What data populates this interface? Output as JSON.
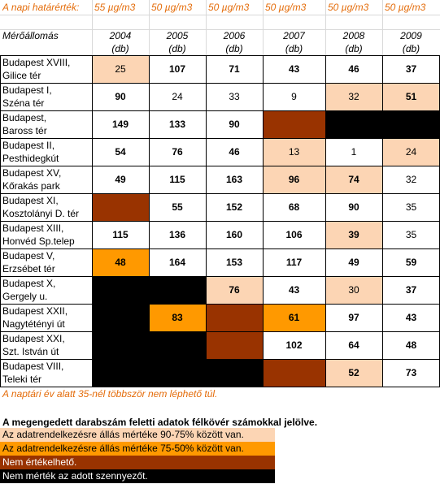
{
  "header": {
    "limit_label": "A napi határérték:",
    "limits": [
      "55 µg/m3",
      "50 µg/m3",
      "50 µg/m3",
      "50 µg/m3",
      "50 µg/m3",
      "50 µg/m3"
    ],
    "station_label": "Mérőállomás",
    "years": [
      "2004",
      "2005",
      "2006",
      "2007",
      "2008",
      "2009"
    ],
    "unit": "(db)"
  },
  "colors": {
    "light_orange": "#fcd5b4",
    "orange": "#ff9900",
    "brown": "#993300",
    "black": "#000000",
    "note_orange": "#e46c0a"
  },
  "rows": [
    {
      "station": [
        "Budapest XVIII,",
        "Gilice tér"
      ],
      "cells": [
        {
          "v": "25",
          "b": false,
          "c": "light"
        },
        {
          "v": "107",
          "b": true,
          "c": ""
        },
        {
          "v": "71",
          "b": true,
          "c": ""
        },
        {
          "v": "43",
          "b": true,
          "c": ""
        },
        {
          "v": "46",
          "b": true,
          "c": ""
        },
        {
          "v": "37",
          "b": true,
          "c": ""
        }
      ]
    },
    {
      "station": [
        "Budapest I,",
        "Széna tér"
      ],
      "cells": [
        {
          "v": "90",
          "b": true,
          "c": ""
        },
        {
          "v": "24",
          "b": false,
          "c": ""
        },
        {
          "v": "33",
          "b": false,
          "c": ""
        },
        {
          "v": "9",
          "b": false,
          "c": ""
        },
        {
          "v": "32",
          "b": false,
          "c": "light"
        },
        {
          "v": "51",
          "b": true,
          "c": "light"
        }
      ]
    },
    {
      "station": [
        "Budapest,",
        "Baross tér"
      ],
      "cells": [
        {
          "v": "149",
          "b": true,
          "c": ""
        },
        {
          "v": "133",
          "b": true,
          "c": ""
        },
        {
          "v": "90",
          "b": true,
          "c": ""
        },
        {
          "v": "",
          "b": false,
          "c": "brown"
        },
        {
          "v": "",
          "b": false,
          "c": "black"
        },
        {
          "v": "",
          "b": false,
          "c": "black"
        }
      ]
    },
    {
      "station": [
        "Budapest II,",
        "Pesthidegkút"
      ],
      "cells": [
        {
          "v": "54",
          "b": true,
          "c": ""
        },
        {
          "v": "76",
          "b": true,
          "c": ""
        },
        {
          "v": "46",
          "b": true,
          "c": ""
        },
        {
          "v": "13",
          "b": false,
          "c": "light"
        },
        {
          "v": "1",
          "b": false,
          "c": ""
        },
        {
          "v": "24",
          "b": false,
          "c": "light"
        }
      ]
    },
    {
      "station": [
        "Budapest XV,",
        "Kőrakás park"
      ],
      "cells": [
        {
          "v": "49",
          "b": true,
          "c": ""
        },
        {
          "v": "115",
          "b": true,
          "c": ""
        },
        {
          "v": "163",
          "b": true,
          "c": ""
        },
        {
          "v": "96",
          "b": true,
          "c": "light"
        },
        {
          "v": "74",
          "b": true,
          "c": "light"
        },
        {
          "v": "32",
          "b": false,
          "c": ""
        }
      ]
    },
    {
      "station": [
        "Budapest XI,",
        "Kosztolányi D. tér"
      ],
      "cells": [
        {
          "v": "",
          "b": false,
          "c": "brown"
        },
        {
          "v": "55",
          "b": true,
          "c": ""
        },
        {
          "v": "152",
          "b": true,
          "c": ""
        },
        {
          "v": "68",
          "b": true,
          "c": ""
        },
        {
          "v": "90",
          "b": true,
          "c": ""
        },
        {
          "v": "35",
          "b": false,
          "c": ""
        }
      ]
    },
    {
      "station": [
        "Budapest XIII,",
        "Honvéd Sp.telep"
      ],
      "cells": [
        {
          "v": "115",
          "b": true,
          "c": ""
        },
        {
          "v": "136",
          "b": true,
          "c": ""
        },
        {
          "v": "160",
          "b": true,
          "c": ""
        },
        {
          "v": "106",
          "b": true,
          "c": ""
        },
        {
          "v": "39",
          "b": true,
          "c": "light"
        },
        {
          "v": "35",
          "b": false,
          "c": ""
        }
      ]
    },
    {
      "station": [
        "Budapest V,",
        "Erzsébet tér"
      ],
      "cells": [
        {
          "v": "48",
          "b": true,
          "c": "orange"
        },
        {
          "v": "164",
          "b": true,
          "c": ""
        },
        {
          "v": "153",
          "b": true,
          "c": ""
        },
        {
          "v": "117",
          "b": true,
          "c": ""
        },
        {
          "v": "49",
          "b": true,
          "c": ""
        },
        {
          "v": "59",
          "b": true,
          "c": ""
        }
      ]
    },
    {
      "station": [
        "Budapest X,",
        "Gergely u."
      ],
      "cells": [
        {
          "v": "",
          "b": false,
          "c": "black"
        },
        {
          "v": "",
          "b": false,
          "c": "black"
        },
        {
          "v": "76",
          "b": true,
          "c": "light"
        },
        {
          "v": "43",
          "b": true,
          "c": ""
        },
        {
          "v": "30",
          "b": false,
          "c": "light"
        },
        {
          "v": "37",
          "b": true,
          "c": ""
        }
      ]
    },
    {
      "station": [
        "Budapest XXII,",
        "Nagytétényi út"
      ],
      "cells": [
        {
          "v": "",
          "b": false,
          "c": "black"
        },
        {
          "v": "83",
          "b": true,
          "c": "orange"
        },
        {
          "v": "",
          "b": false,
          "c": "brown"
        },
        {
          "v": "61",
          "b": true,
          "c": "orange"
        },
        {
          "v": "97",
          "b": true,
          "c": ""
        },
        {
          "v": "43",
          "b": true,
          "c": ""
        }
      ]
    },
    {
      "station": [
        "Budapest XXI,",
        "Szt. István út"
      ],
      "cells": [
        {
          "v": "",
          "b": false,
          "c": "black"
        },
        {
          "v": "",
          "b": false,
          "c": "black"
        },
        {
          "v": "",
          "b": false,
          "c": "brown"
        },
        {
          "v": "102",
          "b": true,
          "c": ""
        },
        {
          "v": "64",
          "b": true,
          "c": ""
        },
        {
          "v": "48",
          "b": true,
          "c": ""
        }
      ]
    },
    {
      "station": [
        "Budapest VIII,",
        "Teleki tér"
      ],
      "cells": [
        {
          "v": "",
          "b": false,
          "c": "black"
        },
        {
          "v": "",
          "b": false,
          "c": "black"
        },
        {
          "v": "",
          "b": false,
          "c": "black"
        },
        {
          "v": "",
          "b": false,
          "c": "brown"
        },
        {
          "v": "52",
          "b": true,
          "c": "light"
        },
        {
          "v": "73",
          "b": true,
          "c": ""
        }
      ]
    }
  ],
  "footnote": "A naptári év alatt 35-nél többször nem léphető túl.",
  "bold_note": "A  megengedett darabszám feletti adatok félkövér számokkal jelölve.",
  "legend": [
    {
      "text": "Az adatrendelkezésre állás mértéke 90-75% között van.",
      "bg": "#fcd5b4",
      "fg": "#000000"
    },
    {
      "text": "Az adatrendelkezésre állás mértéke 75-50% között van.",
      "bg": "#ff9900",
      "fg": "#000000"
    },
    {
      "text": "Nem értékelhető.",
      "bg": "#993300",
      "fg": "#ffffff"
    },
    {
      "text": "Nem mérték az adott szennyezőt.",
      "bg": "#000000",
      "fg": "#ffffff"
    }
  ]
}
